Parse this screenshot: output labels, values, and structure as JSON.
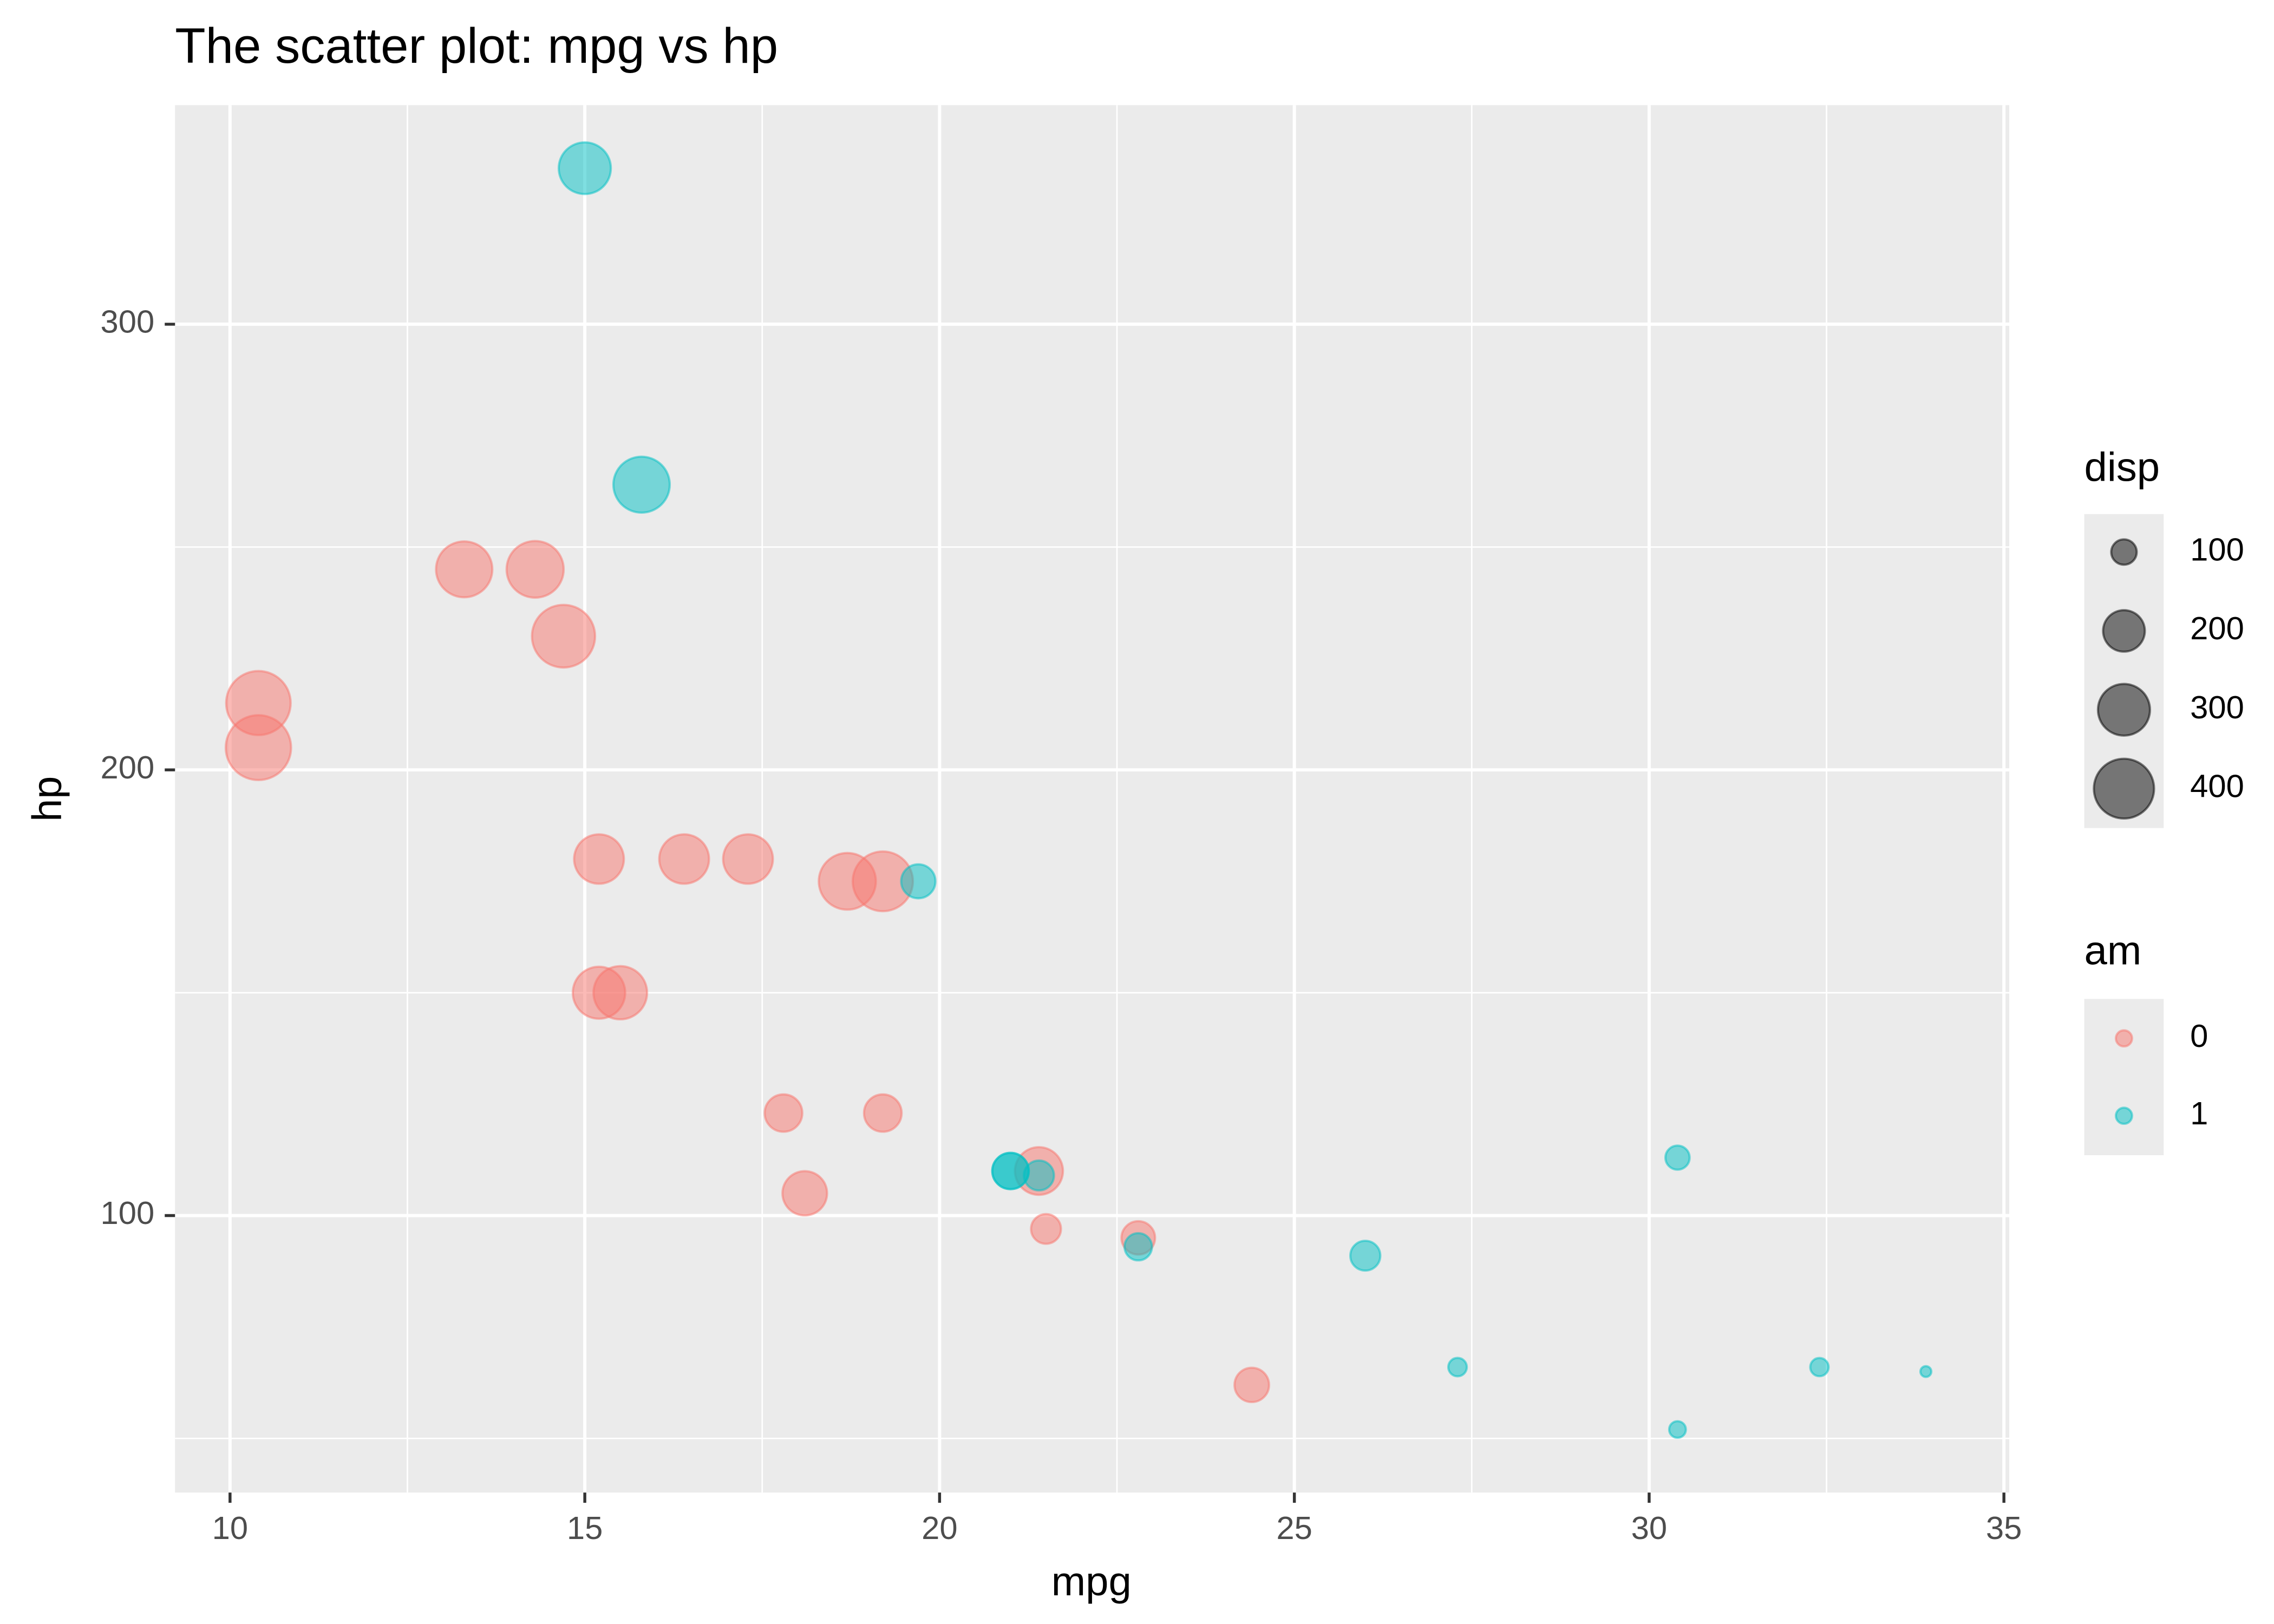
{
  "chart_data": {
    "type": "scatter",
    "title": "The scatter plot: mpg vs hp",
    "x_label": "mpg",
    "y_label": "hp",
    "xlim": [
      9.225,
      35.075
    ],
    "ylim": [
      37.85,
      349.15
    ],
    "xticks": [
      10,
      15,
      20,
      25,
      30,
      35
    ],
    "yticks": [
      100,
      200,
      300
    ],
    "grid": true,
    "alpha": 0.5,
    "color_legend_title": "am",
    "size_legend": {
      "title": "disp",
      "breaks": [
        100,
        200,
        300,
        400
      ]
    },
    "series": [
      {
        "name": "0",
        "color": "#F8766D",
        "x": [
          21.4,
          18.7,
          18.1,
          14.3,
          24.4,
          22.8,
          19.2,
          17.8,
          16.4,
          17.3,
          15.2,
          10.4,
          10.4,
          14.7,
          21.5,
          15.5,
          15.2,
          13.3,
          19.2
        ],
        "values": [
          110,
          175,
          105,
          245,
          62,
          95,
          123,
          123,
          180,
          180,
          180,
          205,
          215,
          230,
          97,
          150,
          150,
          245,
          175
        ],
        "size": [
          258,
          360,
          225,
          360,
          146.7,
          140.8,
          167.6,
          167.6,
          275.8,
          275.8,
          275.8,
          472,
          460,
          440,
          120.1,
          318,
          304,
          350,
          400
        ]
      },
      {
        "name": "1",
        "color": "#00BFC4",
        "x": [
          21.0,
          21.0,
          22.8,
          32.4,
          30.4,
          33.9,
          27.3,
          26.0,
          30.4,
          15.8,
          19.7,
          15.0,
          21.4
        ],
        "values": [
          110,
          110,
          93,
          66,
          52,
          65,
          66,
          91,
          113,
          264,
          175,
          335,
          109
        ],
        "size": [
          160,
          160,
          108,
          78.7,
          75.7,
          71.1,
          79,
          120.3,
          95.1,
          351,
          145,
          301,
          121
        ]
      }
    ]
  }
}
